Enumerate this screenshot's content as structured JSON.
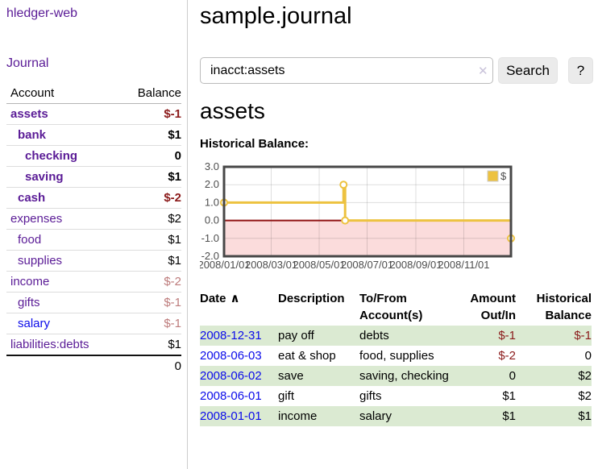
{
  "colors": {
    "link_purple": "#5a1b96",
    "link_blue": "#0b0bea",
    "negative": "#8b1a1a",
    "negative_muted": "#bd7b7b",
    "row_stripe_green": "#dbead2",
    "series_gold": "#edc240"
  },
  "sidebar": {
    "brand": "hledger-web",
    "nav": {
      "journal": "Journal"
    },
    "table": {
      "account_header": "Account",
      "balance_header": "Balance",
      "accounts": [
        {
          "name": "assets",
          "balance": "$-1",
          "level": 0,
          "bold": true,
          "balance_style": "neg"
        },
        {
          "name": "bank",
          "balance": "$1",
          "level": 1,
          "bold": true,
          "balance_style": "pos"
        },
        {
          "name": "checking",
          "balance": "0",
          "level": 2,
          "bold": true,
          "balance_style": "pos"
        },
        {
          "name": "saving",
          "balance": "$1",
          "level": 2,
          "bold": true,
          "balance_style": "pos"
        },
        {
          "name": "cash",
          "balance": "$-2",
          "level": 1,
          "bold": true,
          "balance_style": "neg"
        },
        {
          "name": "expenses",
          "balance": "$2",
          "level": 0,
          "bold": false,
          "balance_style": "pos"
        },
        {
          "name": "food",
          "balance": "$1",
          "level": 1,
          "bold": false,
          "balance_style": "pos"
        },
        {
          "name": "supplies",
          "balance": "$1",
          "level": 1,
          "bold": false,
          "balance_style": "pos"
        },
        {
          "name": "income",
          "balance": "$-2",
          "level": 0,
          "bold": false,
          "balance_style": "neg-muted"
        },
        {
          "name": "gifts",
          "balance": "$-1",
          "level": 1,
          "bold": false,
          "balance_style": "neg-muted"
        },
        {
          "name": "salary",
          "balance": "$-1",
          "level": 1,
          "bold": false,
          "balance_style": "neg-muted",
          "link_color": "blue"
        },
        {
          "name": "liabilities:debts",
          "balance": "$1",
          "level": 0,
          "bold": false,
          "balance_style": "pos"
        }
      ],
      "total": "0"
    }
  },
  "header": {
    "title": "sample.journal"
  },
  "search": {
    "value": "inacct:assets",
    "clear_icon": "✕",
    "button_label": "Search",
    "help_label": "?"
  },
  "account_page": {
    "heading": "assets",
    "chart_label": "Historical Balance:"
  },
  "chart_data": {
    "type": "line",
    "style": "step",
    "title": "Historical Balance",
    "series": [
      {
        "name": "$",
        "color": "#edc240",
        "points": [
          [
            "2008-01-01",
            1
          ],
          [
            "2008-06-01",
            2
          ],
          [
            "2008-06-03",
            0
          ],
          [
            "2008-12-31",
            -1
          ]
        ]
      }
    ],
    "xlim": [
      "2008-01-01",
      "2008-12-31"
    ],
    "ylim": [
      -2,
      3
    ],
    "xticks": [
      {
        "v": "2008-01-01",
        "label": "2008/01/01"
      },
      {
        "v": "2008-03-01",
        "label": "2008/03/01"
      },
      {
        "v": "2008-05-01",
        "label": "2008/05/01"
      },
      {
        "v": "2008-07-01",
        "label": "2008/07/01"
      },
      {
        "v": "2008-09-01",
        "label": "2008/09/01"
      },
      {
        "v": "2008-11-01",
        "label": "2008/11/01"
      }
    ],
    "yticks": [
      {
        "v": 3,
        "label": "3.0"
      },
      {
        "v": 2,
        "label": "2.0"
      },
      {
        "v": 1,
        "label": "1.0"
      },
      {
        "v": 0,
        "label": "0.0"
      },
      {
        "v": -1,
        "label": "-1.0"
      },
      {
        "v": -2,
        "label": "-2.0"
      }
    ],
    "grid": true,
    "legend": {
      "position": "top-right",
      "entries": [
        {
          "label": "$",
          "color": "#edc240"
        }
      ]
    },
    "negative_region_color": "#fbdcdc",
    "zero_line_color": "#8f1111"
  },
  "register": {
    "columns": {
      "date": "Date",
      "sort_icon": "∧",
      "description": "Description",
      "account": "To/From\nAccount(s)",
      "amount": "Amount\nOut/In",
      "balance": "Historical\nBalance"
    },
    "rows": [
      {
        "date": "2008-12-31",
        "description": "pay off",
        "accounts": "debts",
        "amount": "$-1",
        "amount_style": "neg",
        "balance": "$-1",
        "balance_style": "neg"
      },
      {
        "date": "2008-06-03",
        "description": "eat & shop",
        "accounts": "food, supplies",
        "amount": "$-2",
        "amount_style": "neg",
        "balance": "0",
        "balance_style": "pos"
      },
      {
        "date": "2008-06-02",
        "description": "save",
        "accounts": "saving, checking",
        "amount": "0",
        "amount_style": "pos",
        "balance": "$2",
        "balance_style": "pos"
      },
      {
        "date": "2008-06-01",
        "description": "gift",
        "accounts": "gifts",
        "amount": "$1",
        "amount_style": "pos",
        "balance": "$2",
        "balance_style": "pos"
      },
      {
        "date": "2008-01-01",
        "description": "income",
        "accounts": "salary",
        "amount": "$1",
        "amount_style": "pos",
        "balance": "$1",
        "balance_style": "pos"
      }
    ]
  }
}
